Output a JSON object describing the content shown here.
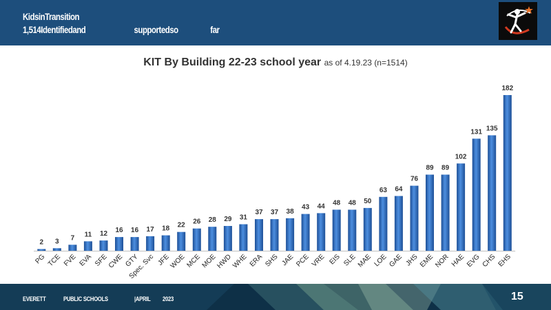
{
  "header": {
    "line1": "KidsinTransition",
    "line2_a": "1,514Identifiedand",
    "line2_b": "supportedso",
    "line2_c": "far"
  },
  "chart_title": {
    "main": "KIT By Building 22-23 school year",
    "sub": "as of 4.19.23 (n=1514)"
  },
  "chart_data": {
    "type": "bar",
    "title": "KIT By Building 22-23 school year as of 4.19.23 (n=1514)",
    "categories": [
      "PG",
      "TCE",
      "FVE",
      "EVA",
      "SFE",
      "CWE",
      "GTY",
      "Spec. Svc",
      "JFE",
      "WOE",
      "MCE",
      "MOE",
      "HWD",
      "WHE",
      "ERA",
      "SHS",
      "JAE",
      "PCE",
      "VRE",
      "EIS",
      "SLE",
      "MAE",
      "LOE",
      "GAE",
      "JHS",
      "EME",
      "NOR",
      "HAE",
      "EVG",
      "CHS",
      "EHS"
    ],
    "values": [
      2,
      3,
      7,
      11,
      12,
      16,
      16,
      17,
      18,
      22,
      26,
      28,
      29,
      31,
      37,
      37,
      38,
      43,
      44,
      48,
      48,
      50,
      63,
      64,
      76,
      89,
      89,
      102,
      131,
      135,
      182
    ],
    "ylim": [
      0,
      182
    ],
    "grid": false,
    "bar_color": "#2e6fc4"
  },
  "footer": {
    "org1": "EVERETT",
    "org2": "PUBLIC SCHOOLS",
    "month": "|APRIL",
    "year": "2023",
    "page": "15"
  },
  "colors": {
    "header": "#1d4e7c",
    "footer": "#0e3047",
    "accent": "#e8722a"
  }
}
